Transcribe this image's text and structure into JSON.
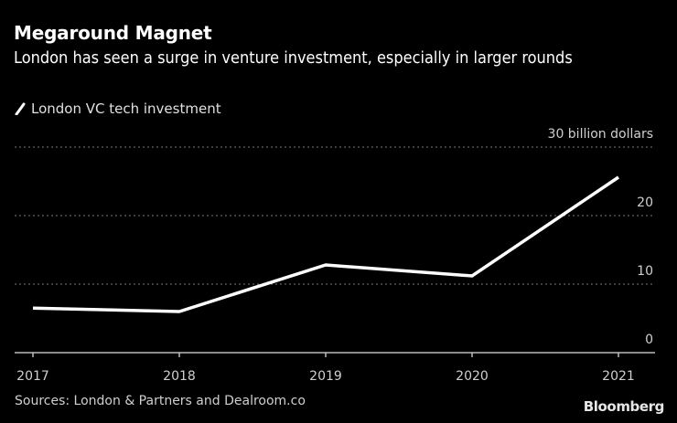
{
  "header": {
    "title": "Megaround Magnet",
    "subtitle": "London has seen a surge in venture investment, especially in larger rounds"
  },
  "legend": {
    "items": [
      {
        "label": "London VC tech investment",
        "color": "#ffffff"
      }
    ]
  },
  "footer": {
    "source": "Sources: London & Partners and Dealroom.co",
    "brand": "Bloomberg"
  },
  "colors": {
    "background": "#000000",
    "line": "#ffffff",
    "grid": "#777777",
    "axis": "#bbbbbb",
    "text_muted": "#cfcfcf"
  },
  "chart_data": {
    "type": "line",
    "title": "Megaround Magnet",
    "subtitle": "London has seen a surge in venture investment, especially in larger rounds",
    "xlabel": "",
    "ylabel": "billion dollars",
    "categories": [
      "2017",
      "2018",
      "2019",
      "2020",
      "2021"
    ],
    "series": [
      {
        "name": "London VC tech investment",
        "values": [
          6.5,
          6.0,
          12.8,
          11.2,
          25.6
        ]
      }
    ],
    "ylim": [
      0,
      30
    ],
    "yticks": [
      0,
      10,
      20,
      30
    ],
    "ytick_labels": [
      "0",
      "10",
      "20",
      "30 billion dollars"
    ],
    "grid": true,
    "y_axis_side": "right",
    "legend_position": "top-left"
  }
}
